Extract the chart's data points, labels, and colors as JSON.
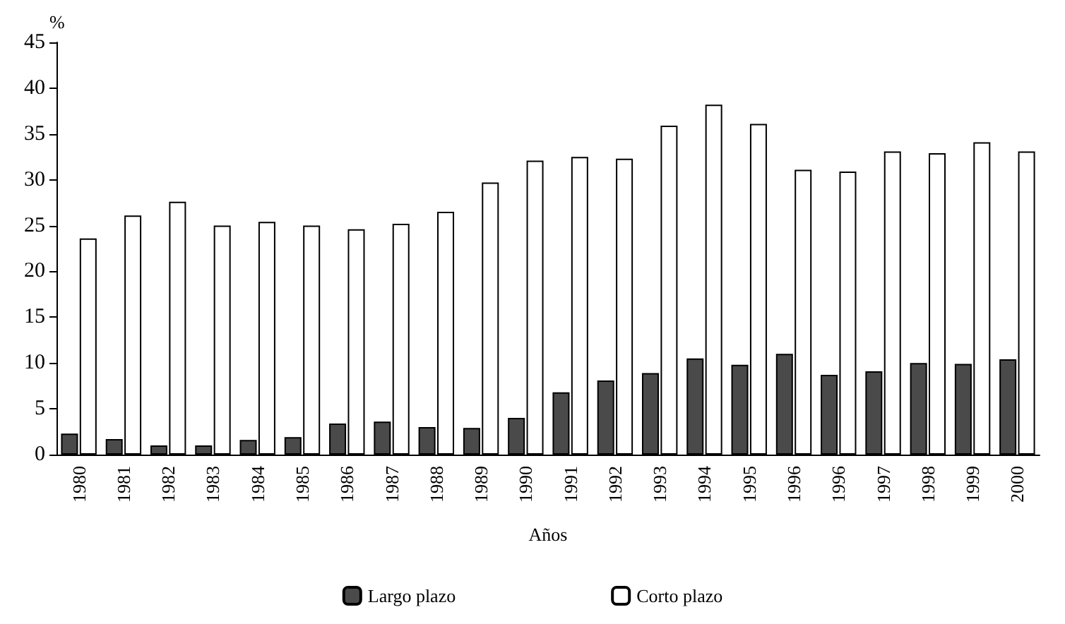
{
  "chart_data": {
    "type": "bar",
    "xlabel": "Años",
    "ylabel": "%",
    "categories": [
      "1980",
      "1981",
      "1982",
      "1983",
      "1984",
      "1985",
      "1986",
      "1987",
      "1988",
      "1989",
      "1990",
      "1991",
      "1992",
      "1993",
      "1994",
      "1995",
      "1996",
      "1996",
      "1997",
      "1998",
      "1999",
      "2000"
    ],
    "series": [
      {
        "name": "Largo plazo",
        "color": "#4a4a4a",
        "values": [
          2.3,
          1.7,
          1.0,
          1.0,
          1.6,
          1.9,
          3.4,
          3.6,
          3.0,
          2.9,
          4.0,
          6.8,
          8.1,
          8.9,
          10.5,
          9.8,
          11.0,
          8.7,
          9.1,
          10.0,
          9.9,
          10.4
        ]
      },
      {
        "name": "Corto plazo",
        "color": "#ffffff",
        "values": [
          23.6,
          26.1,
          27.6,
          25.0,
          25.4,
          25.0,
          24.6,
          25.2,
          26.5,
          29.7,
          32.1,
          32.5,
          32.3,
          35.9,
          38.2,
          36.1,
          31.1,
          30.9,
          33.1,
          32.9,
          34.1,
          33.1
        ]
      }
    ],
    "ylim": [
      0,
      45
    ],
    "yticks": [
      0,
      5,
      10,
      15,
      20,
      25,
      30,
      35,
      40,
      45
    ],
    "grid": false,
    "legend": "bottom"
  }
}
